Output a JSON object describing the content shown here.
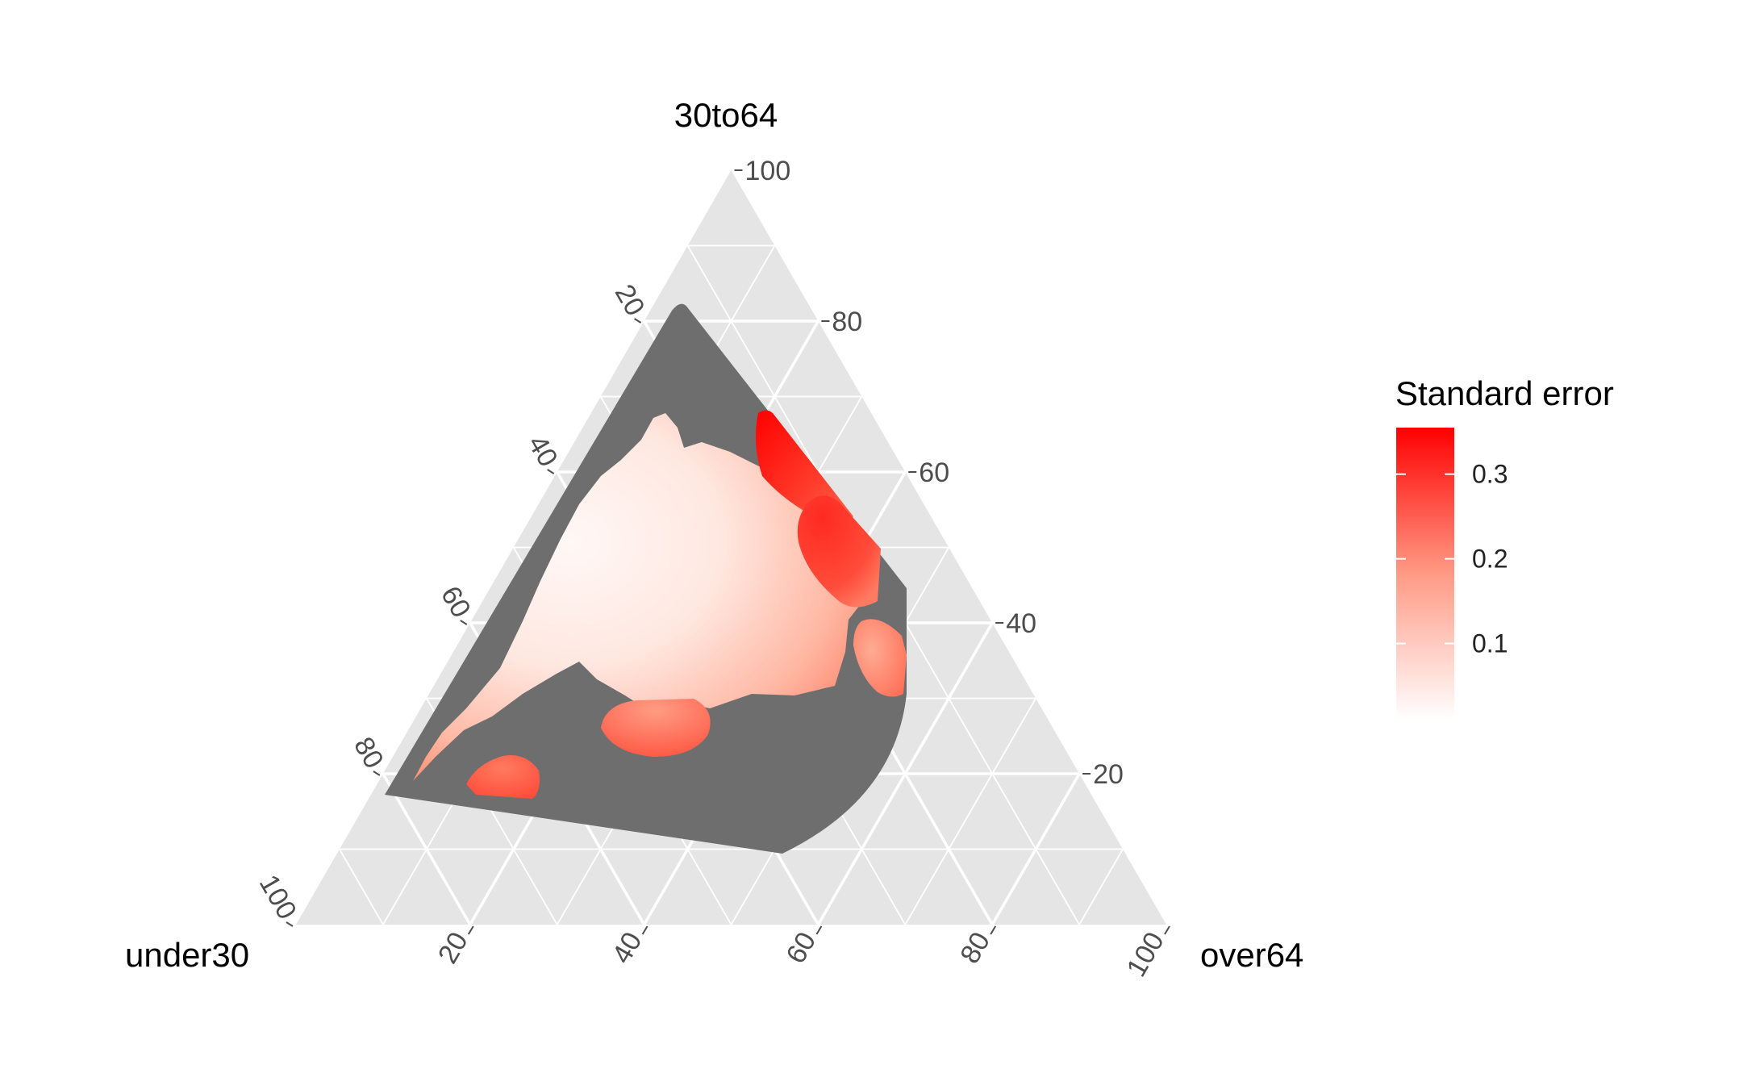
{
  "chart_data": {
    "type": "ternary-heatmap",
    "axes": {
      "top": {
        "label": "30to64"
      },
      "left": {
        "label": "under30"
      },
      "right": {
        "label": "over64"
      }
    },
    "ticks": [
      "20",
      "40",
      "60",
      "80",
      "100"
    ],
    "axis_range": [
      0,
      100
    ],
    "grid": true,
    "region_fill": "#6e6e6e",
    "panel_fill": "#e5e5e5",
    "legend": {
      "title": "Standard error",
      "placement": "right",
      "ticks": [
        "0.1",
        "0.2",
        "0.3"
      ],
      "tick_values": [
        0.1,
        0.2,
        0.3
      ],
      "range": [
        0.01,
        0.355
      ],
      "color_low": "#ffffff",
      "color_high": "#ff0000"
    },
    "blobs": [
      {
        "name": "central-low-error-region",
        "level": 0.05
      },
      {
        "name": "top-right-high-error-region",
        "level": 0.34
      },
      {
        "name": "mid-right-high-error-region",
        "level": 0.3
      },
      {
        "name": "right-edge-error-region",
        "level": 0.22
      },
      {
        "name": "lower-middle-error-region",
        "level": 0.2
      },
      {
        "name": "bottom-left-error-region",
        "level": 0.24
      }
    ]
  }
}
